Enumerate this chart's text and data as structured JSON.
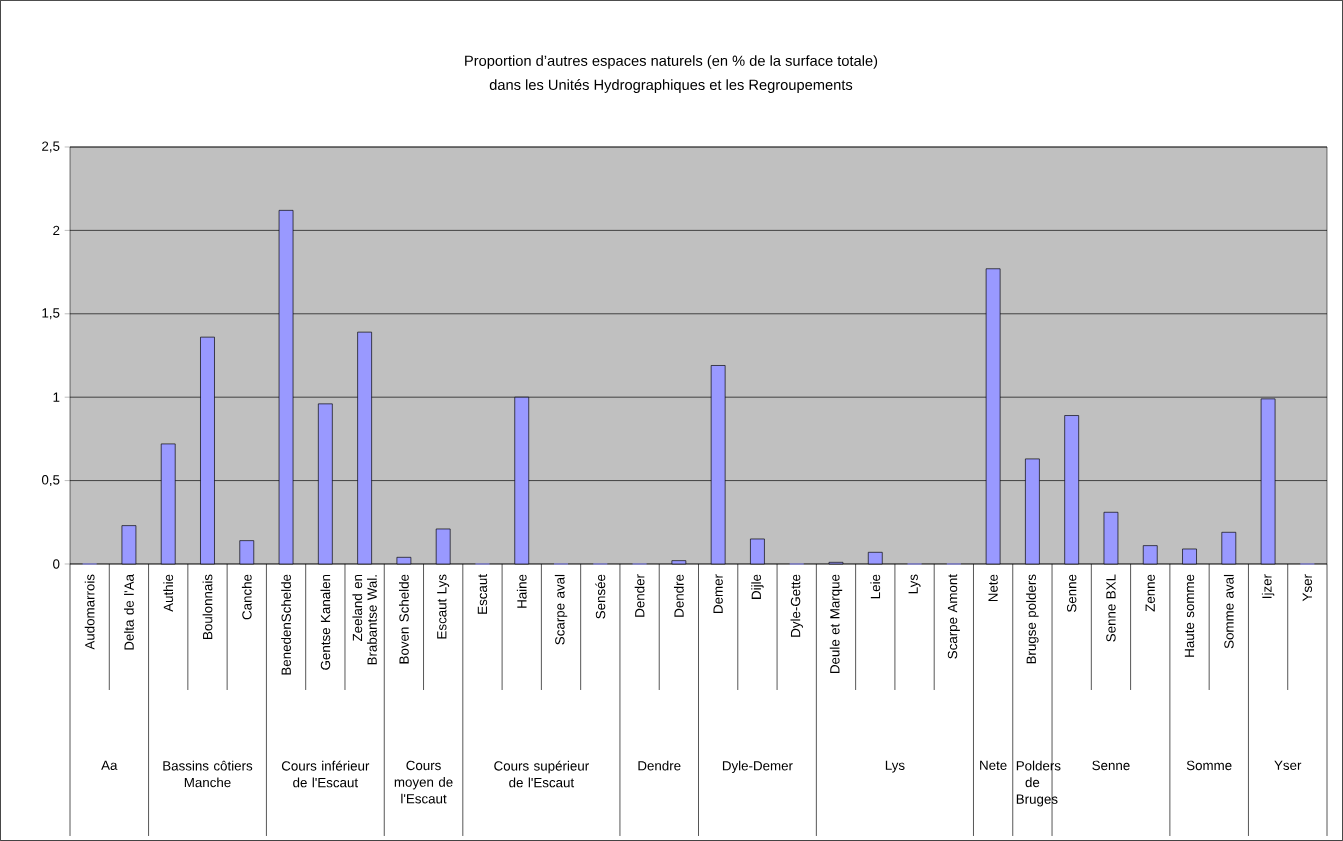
{
  "chart_data": {
    "type": "bar",
    "title": "Proportion d’autres espaces naturels (en % de la surface totale)",
    "subtitle": "dans les Unités Hydrographiques et les Regroupements",
    "categories": [
      "Audomarrois",
      "Delta de l'Aa",
      "Authie",
      "Boulonnais",
      "Canche",
      "BenedenSchelde",
      "Gentse Kanalen",
      "Zeeland en Brabantse Wal.",
      "Boven Schelde",
      "Escaut Lys",
      "Escaut",
      "Haine",
      "Scarpe aval",
      "Sensée",
      "Dender",
      "Dendre",
      "Demer",
      "Dijle",
      "Dyle-Gette",
      "Deule et Marque",
      "Leie",
      "Lys",
      "Scarpe Amont",
      "Nete",
      "Brugse polders",
      "Senne",
      "Senne BXL",
      "Zenne",
      "Haute somme",
      "Somme aval",
      "Ijzer",
      "Yser"
    ],
    "values": [
      0,
      0.23,
      0.72,
      1.36,
      0.14,
      2.12,
      0.96,
      1.39,
      0.04,
      0.21,
      0,
      1.0,
      0,
      0,
      0,
      0.02,
      1.19,
      0.15,
      0,
      0.01,
      0.07,
      0,
      0,
      1.77,
      0.63,
      0.89,
      0.31,
      0.11,
      0.09,
      0.19,
      0.99,
      0
    ],
    "color": "#9999ff",
    "ylim": [
      0,
      2.5
    ],
    "yticks": [
      0,
      {
        "value": 0.5,
        "label": "0,5"
      },
      1,
      {
        "value": 1.5,
        "label": "1,5"
      },
      2,
      {
        "value": 2.5,
        "label": "2,5"
      }
    ],
    "grid": "y",
    "annotations": [
      "Aa",
      "Bassins côtiers Manche",
      "Cours inférieur de l'Escaut",
      "Cours moyen de l'Escaut",
      "Cours supérieur de l'Escaut",
      "Dendre",
      "Dyle-Demer",
      "Lys",
      "Nete",
      "Polders de Bruges",
      "Senne",
      "Somme",
      "Yser"
    ]
  }
}
